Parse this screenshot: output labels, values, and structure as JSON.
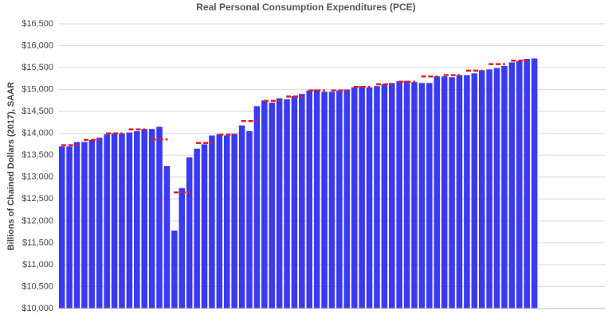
{
  "chart_data": {
    "type": "bar",
    "title": "Real Personal Consumption Expenditures (PCE)",
    "y_label": "Billions of Chained Dollars (2017), SAAR",
    "categories": [
      null,
      null,
      null,
      null,
      null,
      null,
      null,
      null,
      null,
      null,
      null,
      null,
      null,
      null,
      null,
      null,
      null,
      null,
      null,
      null,
      null,
      null,
      null,
      null,
      null,
      null,
      null,
      null,
      null,
      null,
      null,
      null,
      null,
      null,
      null,
      null,
      null,
      null,
      null,
      null,
      null,
      null,
      null,
      null,
      null,
      null,
      null,
      null,
      null,
      null,
      null,
      null,
      null,
      null,
      null,
      null,
      null,
      null,
      null,
      null,
      null,
      null,
      null,
      null,
      null,
      null,
      null,
      null,
      null,
      null,
      null,
      null,
      null
    ],
    "series": [
      {
        "color": "#3a3af2",
        "values": [
          13700,
          13700,
          13800,
          13800,
          13850,
          13900,
          13980,
          14000,
          14000,
          14020,
          14050,
          14100,
          14100,
          14150,
          13250,
          11780,
          12750,
          13450,
          13650,
          13750,
          13950,
          13980,
          13950,
          13990,
          14180,
          14050,
          14620,
          14750,
          14700,
          14800,
          14780,
          14850,
          14900,
          14980,
          15000,
          14950,
          14950,
          14980,
          15000,
          15050,
          15080,
          15050,
          15080,
          15120,
          15150,
          15190,
          15200,
          15170,
          15150,
          15150,
          15300,
          15300,
          15280,
          15330,
          15330,
          15370,
          15440,
          15460,
          15490,
          15540,
          15620,
          15650,
          15700,
          15710,
          null,
          null,
          null,
          null,
          null,
          null,
          null,
          null,
          null
        ]
      }
    ],
    "quarterly_average": {
      "color": "#e81b1b",
      "values": [
        13730,
        13850,
        14000,
        14090,
        13860,
        12650,
        13780,
        13970,
        14280,
        14740,
        14840,
        14980,
        14980,
        15060,
        15120,
        15180,
        15300,
        15330,
        15430,
        15580,
        15660
      ]
    },
    "ylim": [
      10000,
      16500
    ],
    "yticks": [
      {
        "value": 10000,
        "label": "$10,000"
      },
      {
        "value": 10500,
        "label": "$10,500"
      },
      {
        "value": 11000,
        "label": "$11,000"
      },
      {
        "value": 11500,
        "label": "$11,500"
      },
      {
        "value": 12000,
        "label": "$12,000"
      },
      {
        "value": 12500,
        "label": "$12,500"
      },
      {
        "value": 13000,
        "label": "$13,000"
      },
      {
        "value": 13500,
        "label": "$13,500"
      },
      {
        "value": 14000,
        "label": "$14,000"
      },
      {
        "value": 14500,
        "label": "$14,500"
      },
      {
        "value": 15000,
        "label": "$15,000"
      },
      {
        "value": 15500,
        "label": "$15,500"
      },
      {
        "value": 16000,
        "label": "$16,000"
      },
      {
        "value": 16500,
        "label": "$16,500"
      }
    ],
    "grid": true
  }
}
